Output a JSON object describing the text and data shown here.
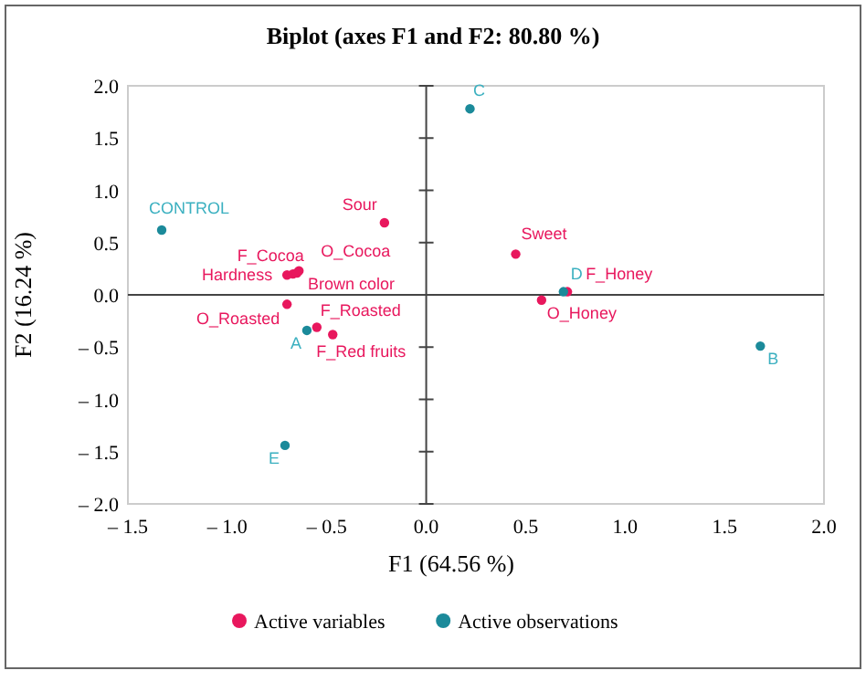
{
  "chart_data": {
    "type": "scatter",
    "title": "Biplot (axes F1 and F2: 80.80 %)",
    "xlabel": "F1 (64.56 %)",
    "ylabel": "F2 (16.24 %)",
    "xlim": [
      -1.5,
      2.0
    ],
    "ylim": [
      -2.0,
      2.0
    ],
    "xticks": [
      {
        "value": -1.5,
        "label": "– 1.5"
      },
      {
        "value": -1.0,
        "label": "– 1.0"
      },
      {
        "value": -0.5,
        "label": "– 0.5"
      },
      {
        "value": 0,
        "label": "0.0"
      },
      {
        "value": 0.5,
        "label": "0.5"
      },
      {
        "value": 1.0,
        "label": "1.0"
      },
      {
        "value": 1.5,
        "label": "1.5"
      },
      {
        "value": 2.0,
        "label": "2.0"
      }
    ],
    "yticks": [
      {
        "value": -2.0,
        "label": "– 2.0"
      },
      {
        "value": -1.5,
        "label": "– 1.5"
      },
      {
        "value": -1.0,
        "label": "– 1.0"
      },
      {
        "value": -0.5,
        "label": "– 0.5"
      },
      {
        "value": 0,
        "label": "0.0"
      },
      {
        "value": 0.5,
        "label": "0.5"
      },
      {
        "value": 1.0,
        "label": "1.0"
      },
      {
        "value": 1.5,
        "label": "1.5"
      },
      {
        "value": 2.0,
        "label": "2.0"
      }
    ],
    "legend": "bottom",
    "marker": "circle",
    "series": [
      {
        "name": "Active variables",
        "color": "#e8175d",
        "x": [
          -0.21,
          -0.64,
          -0.67,
          -0.7,
          -0.65,
          -0.7,
          -0.55,
          -0.47,
          0.45,
          0.71,
          0.58
        ],
        "values": [
          0.69,
          0.23,
          0.2,
          0.19,
          0.21,
          -0.09,
          -0.31,
          -0.38,
          0.39,
          0.03,
          -0.05
        ],
        "value_labels": [
          "Sour",
          "O_Cocoa",
          "F_Cocoa",
          "Hardness",
          "Brown color",
          "O_Roasted",
          "F_Roasted",
          "F_Red fruits",
          "Sweet",
          "F_Honey",
          "O_Honey"
        ]
      },
      {
        "name": "Active observations",
        "color": "#1b8a9a",
        "x": [
          -1.33,
          -0.6,
          -0.71,
          0.22,
          0.69,
          1.68
        ],
        "values": [
          0.62,
          -0.34,
          -1.44,
          1.78,
          0.03,
          -0.49
        ],
        "value_labels": [
          "CONTROL",
          "A",
          "E",
          "C",
          "D",
          "B"
        ]
      }
    ]
  }
}
